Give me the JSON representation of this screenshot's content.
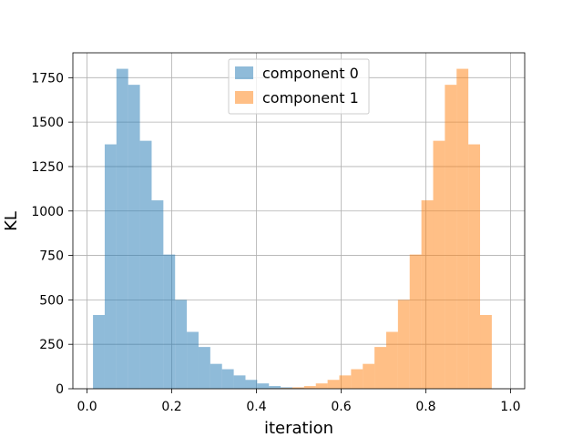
{
  "chart_data": {
    "type": "bar",
    "title": "",
    "xlabel": "iteration",
    "ylabel": "KL",
    "xlim": [
      -0.0335,
      1.0335
    ],
    "ylim": [
      0,
      1890
    ],
    "grid": true,
    "legend_placement": "top-center",
    "bin_edges": [
      0.014,
      0.0417,
      0.0694,
      0.0971,
      0.1248,
      0.1525,
      0.1802,
      0.2079,
      0.2356,
      0.2633,
      0.291,
      0.3187,
      0.3464,
      0.3741,
      0.4018,
      0.4295,
      0.4572,
      0.4849,
      0.5126,
      0.5403,
      0.568,
      0.5957,
      0.6234,
      0.6511,
      0.6788,
      0.7065,
      0.7342,
      0.7619,
      0.7896,
      0.8173,
      0.845,
      0.8727,
      0.9004,
      0.9281,
      0.9558,
      0.9835
    ],
    "series": [
      {
        "name": "component 0",
        "color": "#1f77b4",
        "opacity": 0.5,
        "values": [
          415,
          1375,
          1800,
          1710,
          1395,
          1060,
          755,
          500,
          320,
          235,
          140,
          110,
          75,
          50,
          30,
          15,
          8,
          4,
          2,
          0,
          0,
          0,
          0,
          0,
          0,
          0,
          0,
          0,
          0,
          0,
          0,
          0,
          0,
          0,
          0
        ]
      },
      {
        "name": "component 1",
        "color": "#ff7f0e",
        "opacity": 0.5,
        "values": [
          0,
          0,
          0,
          0,
          0,
          0,
          0,
          0,
          0,
          0,
          0,
          0,
          0,
          0,
          0,
          2,
          4,
          8,
          15,
          30,
          50,
          75,
          110,
          140,
          235,
          320,
          500,
          755,
          1060,
          1395,
          1710,
          1800,
          1375,
          415,
          0
        ]
      }
    ],
    "x_ticks": [
      0.0,
      0.2,
      0.4,
      0.6,
      0.8,
      1.0
    ],
    "x_tick_labels": [
      "0.0",
      "0.2",
      "0.4",
      "0.6",
      "0.8",
      "1.0"
    ],
    "y_ticks": [
      0,
      250,
      500,
      750,
      1000,
      1250,
      1500,
      1750
    ],
    "y_tick_labels": [
      "0",
      "250",
      "500",
      "750",
      "1000",
      "1250",
      "1500",
      "1750"
    ]
  }
}
